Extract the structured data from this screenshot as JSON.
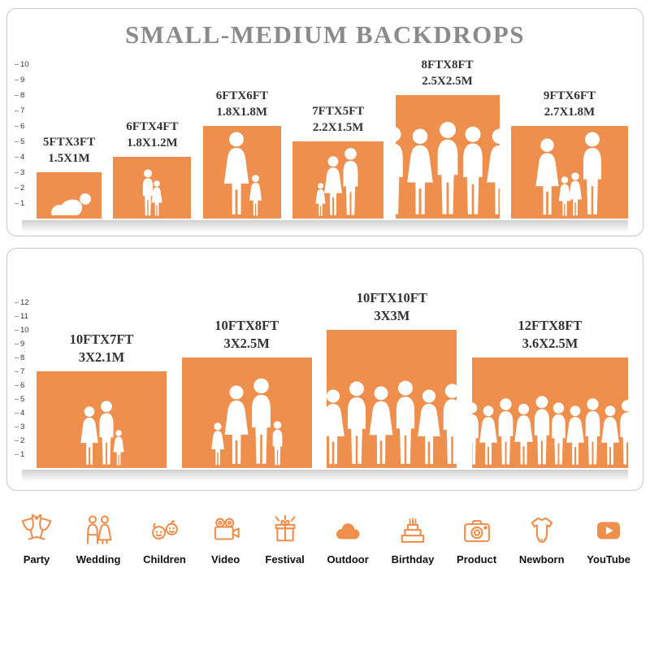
{
  "title": "SMALL-MEDIUM BACKDROPS",
  "accent_color": "#EF8F4D",
  "panels": [
    {
      "name": "small-medium-sizes",
      "ruler_max": 10,
      "boxes": [
        {
          "size_ft": "5FTX3FT",
          "size_m": "1.5X1M",
          "w_ft": 5,
          "h_ft": 3,
          "figures": [
            {
              "t": "baby",
              "h": 0.58
            }
          ]
        },
        {
          "size_ft": "6FTX4FT",
          "size_m": "1.8X1.2M",
          "w_ft": 6,
          "h_ft": 4,
          "figures": [
            {
              "t": "m",
              "h": 0.78
            },
            {
              "t": "f",
              "h": 0.6
            }
          ]
        },
        {
          "size_ft": "6FTX6FT",
          "size_m": "1.8X1.8M",
          "w_ft": 6,
          "h_ft": 6,
          "figures": [
            {
              "t": "f",
              "h": 0.93
            },
            {
              "t": "f",
              "h": 0.46
            }
          ]
        },
        {
          "size_ft": "7FTX5FT",
          "size_m": "2.2X1.5M",
          "w_ft": 7,
          "h_ft": 5,
          "figures": [
            {
              "t": "f",
              "h": 0.44
            },
            {
              "t": "f",
              "h": 0.8
            },
            {
              "t": "m",
              "h": 0.9
            }
          ]
        },
        {
          "size_ft": "8FTX8FT",
          "size_m": "2.5X2.5M",
          "w_ft": 8,
          "h_ft": 8,
          "figures": [
            {
              "t": "m",
              "h": 0.74
            },
            {
              "t": "f",
              "h": 0.72
            },
            {
              "t": "m",
              "h": 0.78
            },
            {
              "t": "m",
              "h": 0.74
            },
            {
              "t": "f",
              "h": 0.72
            }
          ]
        },
        {
          "size_ft": "9FTX6FT",
          "size_m": "2.7X1.8M",
          "w_ft": 9,
          "h_ft": 6,
          "figures": [
            {
              "t": "f",
              "h": 0.85
            },
            {
              "t": "f",
              "h": 0.44
            },
            {
              "t": "f",
              "h": 0.48
            },
            {
              "t": "m",
              "h": 0.92
            }
          ]
        }
      ]
    },
    {
      "name": "large-sizes",
      "ruler_max": 12,
      "boxes": [
        {
          "size_ft": "10FTX7FT",
          "size_m": "3X2.1M",
          "w_ft": 10,
          "h_ft": 7,
          "figures": [
            {
              "t": "f",
              "h": 0.62
            },
            {
              "t": "m",
              "h": 0.68
            },
            {
              "t": "f",
              "h": 0.38
            }
          ]
        },
        {
          "size_ft": "10FTX8FT",
          "size_m": "3X2.5M",
          "w_ft": 10,
          "h_ft": 8,
          "figures": [
            {
              "t": "f",
              "h": 0.4
            },
            {
              "t": "f",
              "h": 0.74
            },
            {
              "t": "m",
              "h": 0.8
            },
            {
              "t": "m",
              "h": 0.42
            }
          ]
        },
        {
          "size_ft": "10FTX10FT",
          "size_m": "3X3M",
          "w_ft": 10,
          "h_ft": 10,
          "figures": [
            {
              "t": "f",
              "h": 0.56
            },
            {
              "t": "m",
              "h": 0.62
            },
            {
              "t": "f",
              "h": 0.58
            },
            {
              "t": "m",
              "h": 0.63
            },
            {
              "t": "f",
              "h": 0.56
            },
            {
              "t": "m",
              "h": 0.6
            }
          ]
        },
        {
          "size_ft": "12FTX8FT",
          "size_m": "3.6X2.5M",
          "w_ft": 12,
          "h_ft": 8,
          "figures": [
            {
              "t": "m",
              "h": 0.58
            },
            {
              "t": "f",
              "h": 0.55
            },
            {
              "t": "m",
              "h": 0.62
            },
            {
              "t": "f",
              "h": 0.57
            },
            {
              "t": "m",
              "h": 0.64
            },
            {
              "t": "m",
              "h": 0.58
            },
            {
              "t": "f",
              "h": 0.55
            },
            {
              "t": "m",
              "h": 0.62
            },
            {
              "t": "f",
              "h": 0.56
            },
            {
              "t": "m",
              "h": 0.6
            }
          ]
        }
      ]
    }
  ],
  "categories": [
    {
      "label": "Party",
      "icon": "party-drinks-icon"
    },
    {
      "label": "Wedding",
      "icon": "wedding-couple-icon"
    },
    {
      "label": "Children",
      "icon": "children-icon"
    },
    {
      "label": "Video",
      "icon": "video-camera-icon"
    },
    {
      "label": "Festival",
      "icon": "festival-gift-icon"
    },
    {
      "label": "Outdoor",
      "icon": "outdoor-cloud-icon"
    },
    {
      "label": "Birthday",
      "icon": "birthday-cake-icon"
    },
    {
      "label": "Product",
      "icon": "product-camera-icon"
    },
    {
      "label": "Newborn",
      "icon": "newborn-onesie-icon"
    },
    {
      "label": "YouTube",
      "icon": "youtube-play-icon"
    }
  ]
}
